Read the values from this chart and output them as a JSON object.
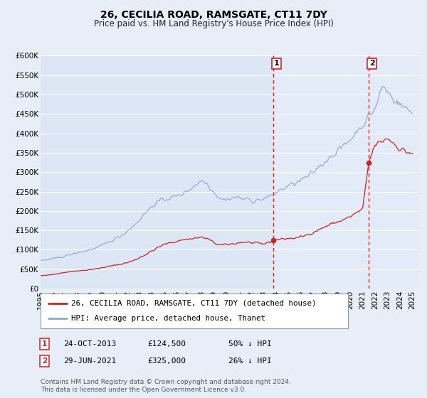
{
  "title": "26, CECILIA ROAD, RAMSGATE, CT11 7DY",
  "subtitle": "Price paid vs. HM Land Registry's House Price Index (HPI)",
  "ylim": [
    0,
    600000
  ],
  "yticks": [
    0,
    50000,
    100000,
    150000,
    200000,
    250000,
    300000,
    350000,
    400000,
    450000,
    500000,
    550000,
    600000
  ],
  "ytick_labels": [
    "£0",
    "£50K",
    "£100K",
    "£150K",
    "£200K",
    "£250K",
    "£300K",
    "£350K",
    "£400K",
    "£450K",
    "£500K",
    "£550K",
    "£600K"
  ],
  "xlim_start": 1995.0,
  "xlim_end": 2025.5,
  "xticks": [
    1995,
    1996,
    1997,
    1998,
    1999,
    2000,
    2001,
    2002,
    2003,
    2004,
    2005,
    2006,
    2007,
    2008,
    2009,
    2010,
    2011,
    2012,
    2013,
    2014,
    2015,
    2016,
    2017,
    2018,
    2019,
    2020,
    2021,
    2022,
    2023,
    2024,
    2025
  ],
  "fig_bg_color": "#e8eef8",
  "plot_bg_color": "#dce6f5",
  "plot_bg_color_right": "#e4ecf8",
  "grid_color": "#ffffff",
  "red_line_color": "#cc2222",
  "blue_line_color": "#88aacc",
  "sale1_x": 2013.81,
  "sale1_y": 124500,
  "sale2_x": 2021.49,
  "sale2_y": 325000,
  "legend_label_red": "26, CECILIA ROAD, RAMSGATE, CT11 7DY (detached house)",
  "legend_label_blue": "HPI: Average price, detached house, Thanet",
  "sale1_date": "24-OCT-2013",
  "sale1_price": "£124,500",
  "sale1_info": "50% ↓ HPI",
  "sale2_date": "29-JUN-2021",
  "sale2_price": "£325,000",
  "sale2_info": "26% ↓ HPI",
  "footer_line1": "Contains HM Land Registry data © Crown copyright and database right 2024.",
  "footer_line2": "This data is licensed under the Open Government Licence v3.0."
}
